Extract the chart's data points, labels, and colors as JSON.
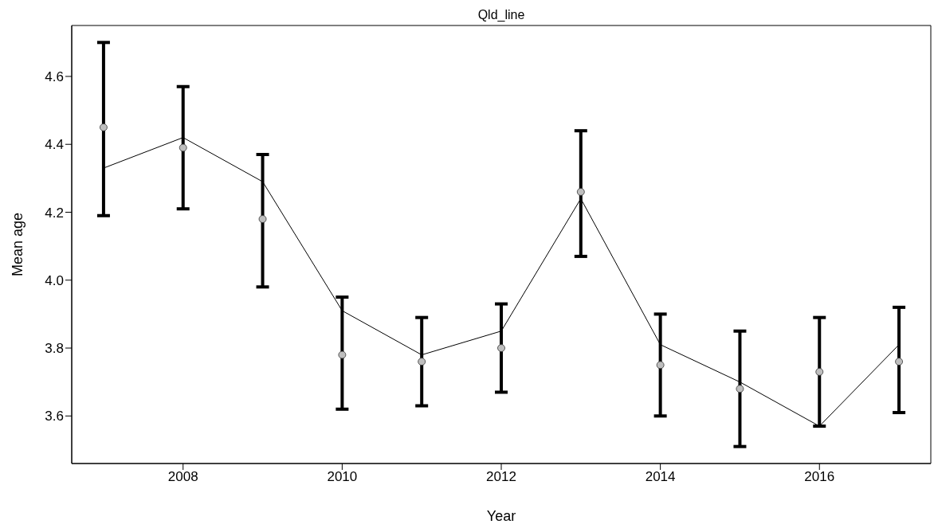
{
  "chart_data": {
    "type": "line",
    "title": "Qld_line",
    "xlabel": "Year",
    "ylabel": "Mean age",
    "x": [
      2007,
      2008,
      2009,
      2010,
      2011,
      2012,
      2013,
      2014,
      2015,
      2016,
      2017
    ],
    "xlim": [
      2006.6,
      2017.4
    ],
    "xticks": [
      2008,
      2010,
      2012,
      2014,
      2016
    ],
    "ylim": [
      3.46,
      4.75
    ],
    "yticks": [
      3.6,
      3.8,
      {
        "value": 4,
        "label": "4.0"
      },
      4.2,
      4.4,
      4.6
    ],
    "grid": false,
    "legend": false,
    "series": [
      {
        "type": "scatter",
        "color": "#bebebe",
        "marker": "circle",
        "values": [
          4.45,
          4.39,
          4.18,
          3.78,
          3.76,
          3.8,
          4.26,
          3.75,
          3.68,
          3.73,
          3.76
        ],
        "errors": [
          [
            4.19,
            4.7
          ],
          [
            4.21,
            4.57
          ],
          [
            3.98,
            4.37
          ],
          [
            3.62,
            3.95
          ],
          [
            3.63,
            3.89
          ],
          [
            3.67,
            3.93
          ],
          [
            4.07,
            4.44
          ],
          [
            3.6,
            3.9
          ],
          [
            3.51,
            3.85
          ],
          [
            3.57,
            3.89
          ],
          [
            3.61,
            3.92
          ]
        ]
      },
      {
        "type": "line",
        "color": "#000000",
        "marker": "none",
        "line_style": "solid",
        "values": [
          4.33,
          4.42,
          4.29,
          3.91,
          3.78,
          3.85,
          4.24,
          3.81,
          3.7,
          3.57,
          3.81
        ]
      }
    ]
  }
}
